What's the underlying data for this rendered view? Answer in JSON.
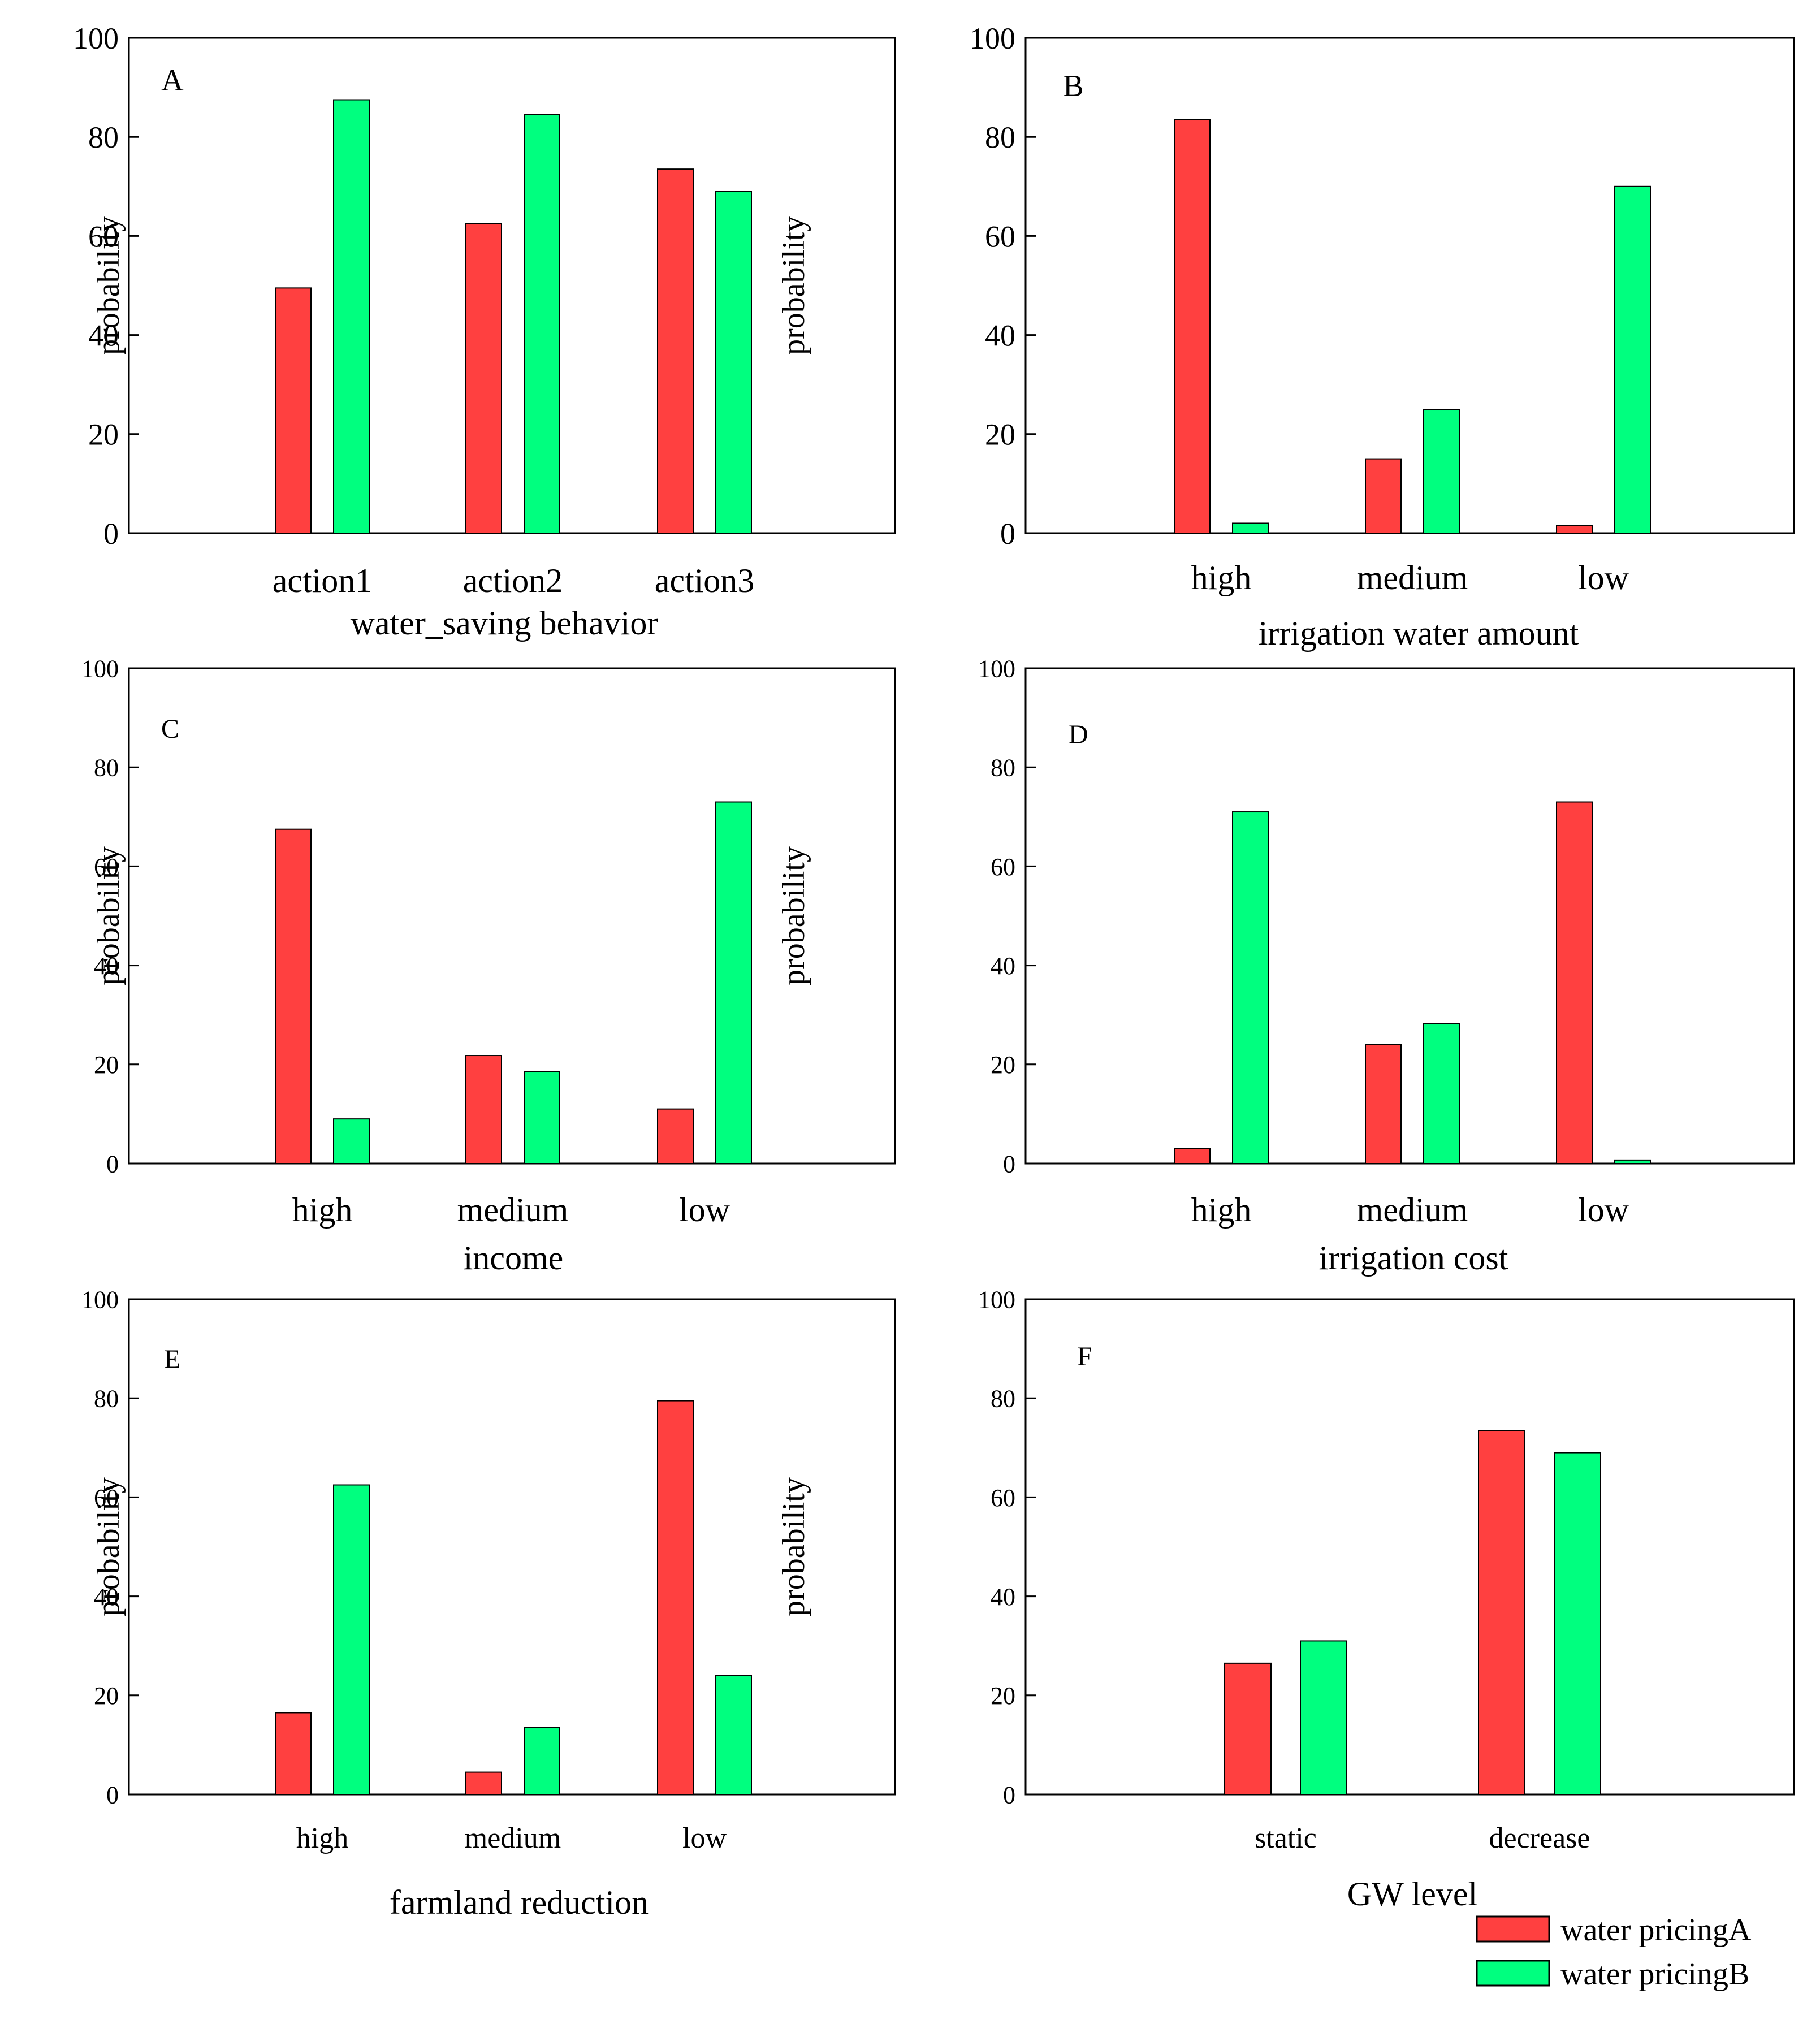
{
  "colors": {
    "seriesA": "#ff4040",
    "seriesB": "#00ff7f",
    "axis": "#000000"
  },
  "legend": {
    "items": [
      "water pricingA",
      "water pricingB"
    ]
  },
  "chart_data": [
    {
      "type": "bar",
      "panel": "A",
      "ylabel": "probability",
      "xlabel": "water_saving behavior",
      "ylim": [
        0,
        100
      ],
      "yticks": [
        "0",
        "20",
        "40",
        "60",
        "80",
        "100"
      ],
      "categories": [
        "action1",
        "action2",
        "action3"
      ],
      "series": [
        {
          "name": "water pricingA",
          "values": [
            49.5,
            62.5,
            73.5
          ]
        },
        {
          "name": "water pricingB",
          "values": [
            87.5,
            84.5,
            69
          ]
        }
      ]
    },
    {
      "type": "bar",
      "panel": "B",
      "ylabel": "probability",
      "xlabel": "irrigation water amount",
      "ylim": [
        0,
        100
      ],
      "yticks": [
        "0",
        "20",
        "40",
        "60",
        "80",
        "100"
      ],
      "categories": [
        "high",
        "medium",
        "low"
      ],
      "series": [
        {
          "name": "water pricingA",
          "values": [
            83.5,
            15,
            1.5
          ]
        },
        {
          "name": "water pricingB",
          "values": [
            2,
            25,
            70
          ]
        }
      ]
    },
    {
      "type": "bar",
      "panel": "C",
      "ylabel": "probability",
      "xlabel": "income",
      "ylim": [
        0,
        100
      ],
      "yticks": [
        "0",
        "20",
        "40",
        "60",
        "80",
        "100"
      ],
      "categories": [
        "high",
        "medium",
        "low"
      ],
      "series": [
        {
          "name": "water pricingA",
          "values": [
            67.5,
            21.8,
            11
          ]
        },
        {
          "name": "water pricingB",
          "values": [
            9,
            18.5,
            73
          ]
        }
      ]
    },
    {
      "type": "bar",
      "panel": "D",
      "ylabel": "probability",
      "xlabel": "irrigation cost",
      "ylim": [
        0,
        100
      ],
      "yticks": [
        "0",
        "20",
        "40",
        "60",
        "80",
        "100"
      ],
      "categories": [
        "high",
        "medium",
        "low"
      ],
      "series": [
        {
          "name": "water pricingA",
          "values": [
            3,
            24,
            73
          ]
        },
        {
          "name": "water pricingB",
          "values": [
            71,
            28.3,
            0.7
          ]
        }
      ]
    },
    {
      "type": "bar",
      "panel": "E",
      "ylabel": "probability",
      "xlabel": "farmland reduction",
      "ylim": [
        0,
        100
      ],
      "yticks": [
        "0",
        "20",
        "40",
        "60",
        "80",
        "100"
      ],
      "categories": [
        "high",
        "medium",
        "low"
      ],
      "series": [
        {
          "name": "water pricingA",
          "values": [
            16.5,
            4.5,
            79.5
          ]
        },
        {
          "name": "water pricingB",
          "values": [
            62.5,
            13.5,
            24
          ]
        }
      ]
    },
    {
      "type": "bar",
      "panel": "F",
      "ylabel": "probability",
      "xlabel": "GW level",
      "ylim": [
        0,
        100
      ],
      "yticks": [
        "0",
        "20",
        "40",
        "60",
        "80",
        "100"
      ],
      "categories": [
        "static",
        "decrease"
      ],
      "series": [
        {
          "name": "water pricingA",
          "values": [
            26.5,
            73.5
          ]
        },
        {
          "name": "water pricingB",
          "values": [
            31,
            69
          ]
        }
      ]
    }
  ]
}
